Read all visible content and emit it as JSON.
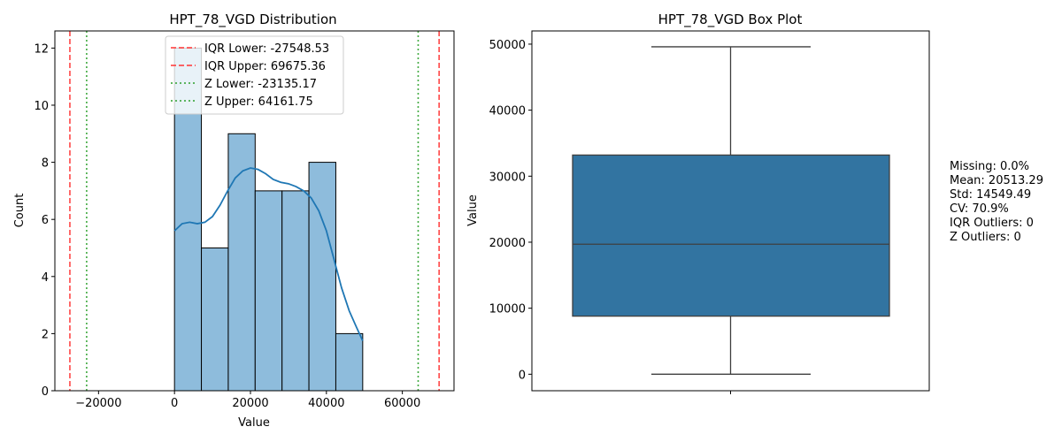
{
  "chart_data": [
    {
      "type": "bar",
      "title": "HPT_78_VGD Distribution",
      "xlabel": "Value",
      "ylabel": "Count",
      "xlim": [
        -31500,
        73600
      ],
      "ylim": [
        0,
        12.6
      ],
      "xticks": [
        -20000,
        0,
        20000,
        40000,
        60000
      ],
      "xtick_labels": [
        "−20000",
        "0",
        "20000",
        "40000",
        "60000"
      ],
      "yticks": [
        0,
        2,
        4,
        6,
        8,
        10,
        12
      ],
      "bin_edges": [
        0,
        7080,
        14160,
        21240,
        28320,
        35400,
        42480,
        49560
      ],
      "values": [
        12,
        5,
        9,
        7,
        7,
        8,
        2
      ],
      "kde": {
        "x": [
          0,
          2000,
          4000,
          6000,
          8000,
          10000,
          12000,
          14000,
          16000,
          18000,
          20000,
          22000,
          24000,
          26000,
          28000,
          30000,
          32000,
          34000,
          36000,
          38000,
          40000,
          42000,
          44000,
          46000,
          48000,
          49560
        ],
        "y": [
          5.6,
          5.85,
          5.9,
          5.85,
          5.9,
          6.1,
          6.5,
          7.0,
          7.45,
          7.7,
          7.8,
          7.75,
          7.6,
          7.4,
          7.3,
          7.25,
          7.15,
          7.0,
          6.75,
          6.3,
          5.6,
          4.6,
          3.6,
          2.8,
          2.2,
          1.75
        ]
      },
      "reference_lines": [
        {
          "name": "IQR Lower: -27548.53",
          "x": -27548.53,
          "style": "dashed",
          "color": "#ff3333"
        },
        {
          "name": "IQR Upper: 69675.36",
          "x": 69675.36,
          "style": "dashed",
          "color": "#ff3333"
        },
        {
          "name": "Z Lower: -23135.17",
          "x": -23135.17,
          "style": "dotted",
          "color": "#2ca02c"
        },
        {
          "name": "Z Upper: 64161.75",
          "x": 64161.75,
          "style": "dotted",
          "color": "#2ca02c"
        }
      ],
      "legend_position": "top",
      "colors": {
        "bar": "#8ebcdc",
        "kde": "#1f77b4"
      }
    },
    {
      "type": "box",
      "title": "HPT_78_VGD Box Plot",
      "xlabel": "",
      "ylabel": "Value",
      "ylim": [
        -2500,
        52000
      ],
      "yticks": [
        0,
        10000,
        20000,
        30000,
        40000,
        50000
      ],
      "box": {
        "min": 0,
        "q1": 8800,
        "median": 19700,
        "q3": 33200,
        "max": 49600
      },
      "colors": {
        "box": "#3274a1",
        "line": "#3f3f3f"
      }
    }
  ],
  "stats": [
    "Missing: 0.0%",
    "Mean: 20513.29",
    "Std: 14549.49",
    "CV: 70.9%",
    "IQR Outliers: 0",
    "Z Outliers: 0"
  ]
}
